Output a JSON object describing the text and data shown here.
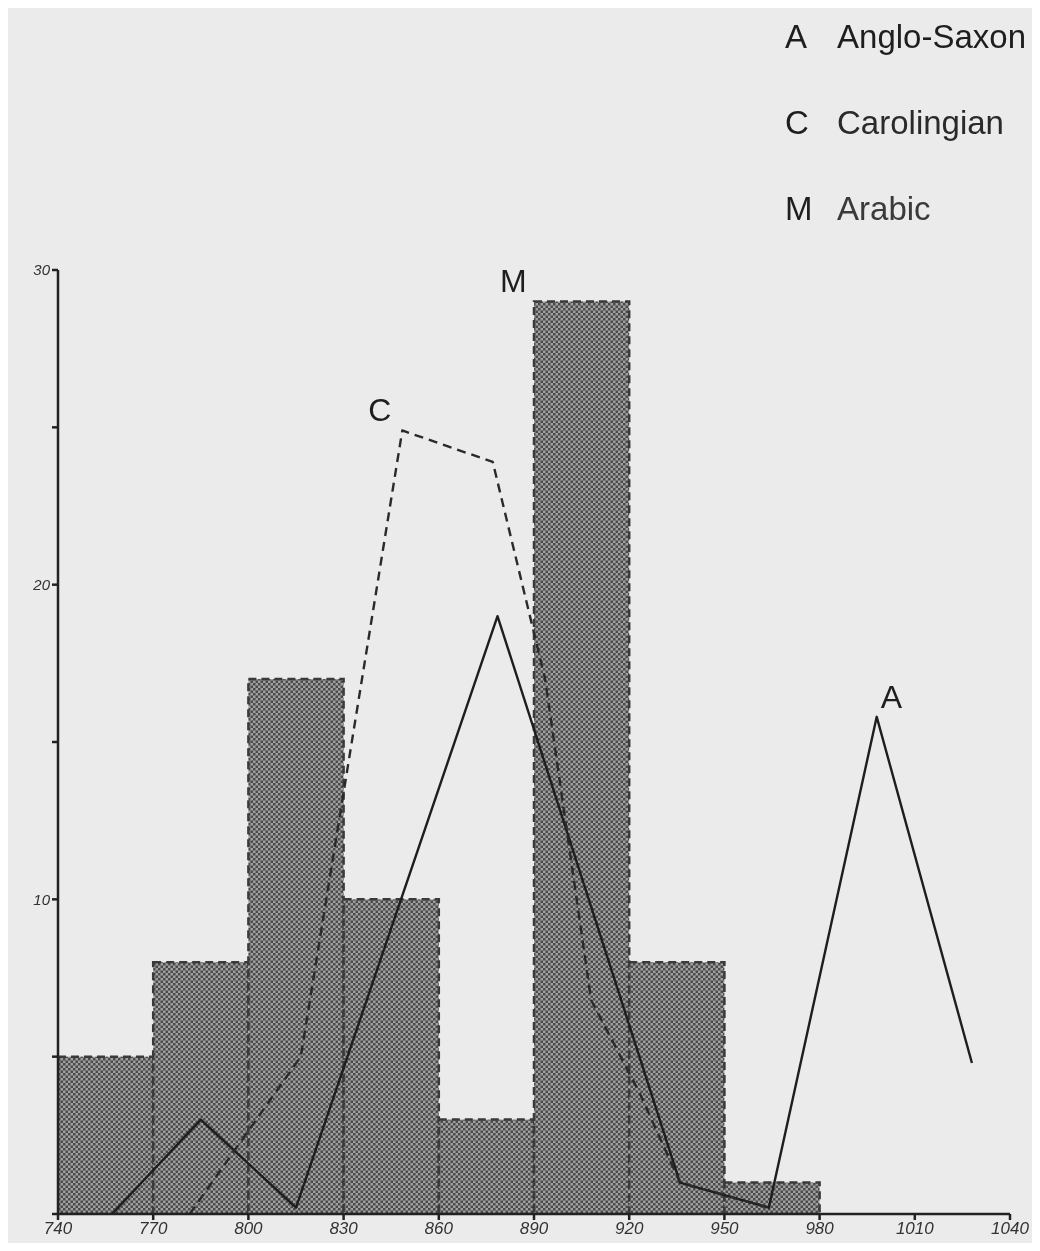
{
  "chart_data": {
    "type": "line",
    "xlim": [
      740,
      1040
    ],
    "xticks": [
      740,
      770,
      800,
      830,
      860,
      890,
      920,
      950,
      980,
      1010,
      1040
    ],
    "ylim": [
      0,
      30
    ],
    "yticks": [
      {
        "value": 0,
        "label": null
      },
      {
        "value": 5,
        "label": null
      },
      10,
      {
        "value": 15,
        "label": null
      },
      20,
      {
        "value": 25,
        "label": null
      },
      30
    ],
    "grid": false,
    "legend": "top right",
    "marker": "none",
    "series": [
      {
        "name": "Anglo-Saxon",
        "line_style": "solid",
        "color": "#1e1e1e",
        "x": [
          757,
          785,
          815,
          878.5,
          936,
          964,
          998,
          1028
        ],
        "values": [
          0,
          3,
          0.2,
          19,
          1,
          0.2,
          15.8,
          4.8
        ]
      },
      {
        "name": "Carolingian",
        "line_style": "dashed",
        "color": "#2a2a2a",
        "x": [
          781.5,
          816.5,
          848.5,
          877,
          893.5,
          908,
          923.5,
          936,
          964
        ],
        "values": [
          0,
          5,
          24.9,
          23.9,
          17,
          6.8,
          3.8,
          1,
          0.2
        ]
      },
      {
        "name": "Arabic",
        "type": "histogram",
        "color": "#3a3a3a",
        "bins": [
          740,
          770,
          800,
          830,
          860,
          890,
          920,
          950,
          980
        ],
        "values": [
          5,
          8,
          17,
          10,
          3,
          29,
          8,
          1
        ]
      }
    ],
    "annotations": [
      {
        "text": "A",
        "x": 998,
        "y": 15.8
      },
      {
        "text": "C",
        "x": 848.5,
        "y": 24.9
      },
      {
        "text": "M",
        "x": 890,
        "y": 29
      }
    ]
  }
}
